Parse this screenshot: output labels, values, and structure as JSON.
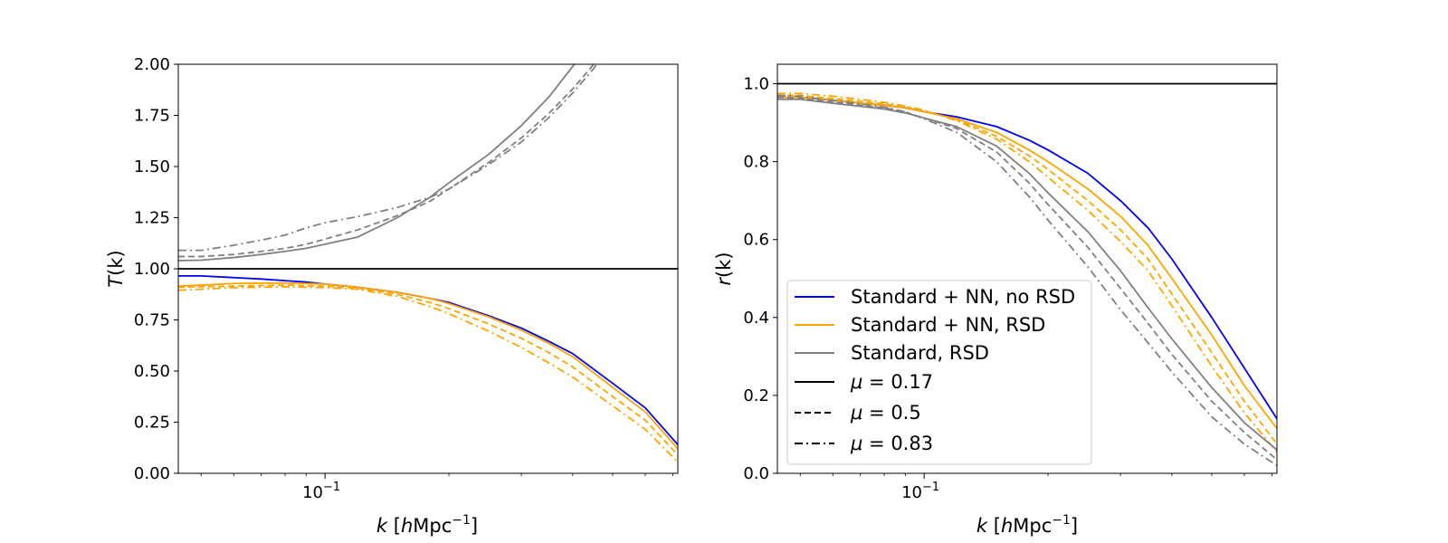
{
  "colors": {
    "nn_no_rsd": "#0000ff",
    "nn_rsd": "#ffa500",
    "standard_rsd": "#808080",
    "reference": "#000000"
  },
  "legend": {
    "placement": "lower-left",
    "panel": 1,
    "entries": [
      {
        "label": "Standard + NN, no RSD",
        "color_key": "nn_no_rsd",
        "dash": "solid"
      },
      {
        "label": "Standard + NN, RSD",
        "color_key": "nn_rsd",
        "dash": "solid"
      },
      {
        "label": "Standard, RSD",
        "color_key": "standard_rsd",
        "dash": "solid"
      },
      {
        "label_parts": {
          "symbol": "μ",
          "value": " = 0.17"
        },
        "color_key": "reference",
        "dash": "solid"
      },
      {
        "label_parts": {
          "symbol": "μ",
          "value": " = 0.5"
        },
        "color_key": "reference",
        "dash": "dashed"
      },
      {
        "label_parts": {
          "symbol": "μ",
          "value": " = 0.83"
        },
        "color_key": "reference",
        "dash": "dashdot"
      }
    ]
  },
  "chart_data": [
    {
      "type": "line",
      "xscale": "log",
      "xlim": [
        0.044,
        0.72
      ],
      "ylim": [
        0,
        2.0
      ],
      "grid": false,
      "xlabel_parts": {
        "var": "k",
        "pre": " [",
        "h": "h",
        "mid": "Mpc",
        "sup": "−1",
        "post": "]"
      },
      "ylabel_parts": {
        "var": "T",
        "rest": "(k)"
      },
      "x_major_ticks": [
        {
          "value": 0.1,
          "base": "10",
          "exp": "−1"
        }
      ],
      "y_ticks": [
        {
          "value": 0.0,
          "label": "0.00"
        },
        {
          "value": 0.25,
          "label": "0.25"
        },
        {
          "value": 0.5,
          "label": "0.50"
        },
        {
          "value": 0.75,
          "label": "0.75"
        },
        {
          "value": 1.0,
          "label": "1.00"
        },
        {
          "value": 1.25,
          "label": "1.25"
        },
        {
          "value": 1.5,
          "label": "1.50"
        },
        {
          "value": 1.75,
          "label": "1.75"
        },
        {
          "value": 2.0,
          "label": "2.00"
        }
      ],
      "hline": 1.0,
      "series": [
        {
          "color_key": "nn_no_rsd",
          "dash": "solid",
          "x": [
            0.044,
            0.05,
            0.06,
            0.07,
            0.08,
            0.09,
            0.1,
            0.12,
            0.15,
            0.18,
            0.2,
            0.25,
            0.3,
            0.35,
            0.4,
            0.5,
            0.6,
            0.72
          ],
          "y": [
            0.965,
            0.965,
            0.957,
            0.95,
            0.942,
            0.935,
            0.925,
            0.91,
            0.885,
            0.855,
            0.835,
            0.77,
            0.71,
            0.645,
            0.585,
            0.44,
            0.32,
            0.14
          ]
        },
        {
          "color_key": "nn_rsd",
          "dash": "solid",
          "x": [
            0.044,
            0.05,
            0.06,
            0.07,
            0.08,
            0.09,
            0.1,
            0.12,
            0.15,
            0.18,
            0.2,
            0.25,
            0.3,
            0.35,
            0.4,
            0.5,
            0.6,
            0.72
          ],
          "y": [
            0.915,
            0.92,
            0.928,
            0.93,
            0.93,
            0.928,
            0.925,
            0.91,
            0.885,
            0.855,
            0.83,
            0.765,
            0.7,
            0.635,
            0.57,
            0.42,
            0.3,
            0.12
          ]
        },
        {
          "color_key": "nn_rsd",
          "dash": "dashed",
          "x": [
            0.044,
            0.05,
            0.06,
            0.07,
            0.08,
            0.09,
            0.1,
            0.12,
            0.15,
            0.18,
            0.2,
            0.25,
            0.3,
            0.35,
            0.4,
            0.5,
            0.6,
            0.72
          ],
          "y": [
            0.91,
            0.912,
            0.915,
            0.918,
            0.92,
            0.918,
            0.915,
            0.905,
            0.875,
            0.835,
            0.805,
            0.73,
            0.66,
            0.59,
            0.52,
            0.375,
            0.26,
            0.09
          ]
        },
        {
          "color_key": "nn_rsd",
          "dash": "dashdot",
          "x": [
            0.044,
            0.05,
            0.06,
            0.07,
            0.08,
            0.09,
            0.1,
            0.12,
            0.15,
            0.18,
            0.2,
            0.25,
            0.3,
            0.35,
            0.4,
            0.5,
            0.6,
            0.72
          ],
          "y": [
            0.895,
            0.9,
            0.908,
            0.91,
            0.912,
            0.91,
            0.908,
            0.9,
            0.865,
            0.815,
            0.78,
            0.695,
            0.615,
            0.54,
            0.47,
            0.33,
            0.215,
            0.055
          ]
        },
        {
          "color_key": "standard_rsd",
          "dash": "solid",
          "x": [
            0.044,
            0.05,
            0.06,
            0.07,
            0.08,
            0.09,
            0.1,
            0.12,
            0.15,
            0.18,
            0.2,
            0.25,
            0.3,
            0.35,
            0.4,
            0.45,
            0.48
          ],
          "y": [
            1.04,
            1.042,
            1.055,
            1.07,
            1.085,
            1.1,
            1.12,
            1.155,
            1.25,
            1.35,
            1.42,
            1.56,
            1.7,
            1.84,
            1.99,
            2.12,
            2.2
          ]
        },
        {
          "color_key": "standard_rsd",
          "dash": "dashed",
          "x": [
            0.044,
            0.05,
            0.06,
            0.07,
            0.08,
            0.09,
            0.1,
            0.12,
            0.15,
            0.18,
            0.2,
            0.25,
            0.3,
            0.35,
            0.4,
            0.45,
            0.48
          ],
          "y": [
            1.06,
            1.06,
            1.07,
            1.085,
            1.1,
            1.12,
            1.145,
            1.19,
            1.26,
            1.33,
            1.39,
            1.52,
            1.64,
            1.76,
            1.88,
            2.0,
            2.08
          ]
        },
        {
          "color_key": "standard_rsd",
          "dash": "dashdot",
          "x": [
            0.044,
            0.05,
            0.06,
            0.07,
            0.08,
            0.09,
            0.1,
            0.12,
            0.15,
            0.18,
            0.2,
            0.25,
            0.3,
            0.35,
            0.4,
            0.45,
            0.48
          ],
          "y": [
            1.09,
            1.09,
            1.115,
            1.14,
            1.165,
            1.2,
            1.225,
            1.255,
            1.3,
            1.35,
            1.39,
            1.51,
            1.62,
            1.74,
            1.86,
            1.98,
            2.06
          ]
        }
      ]
    },
    {
      "type": "line",
      "xscale": "log",
      "xlim": [
        0.044,
        0.72
      ],
      "ylim": [
        0,
        1.05
      ],
      "grid": false,
      "xlabel_parts": {
        "var": "k",
        "pre": " [",
        "h": "h",
        "mid": "Mpc",
        "sup": "−1",
        "post": "]"
      },
      "ylabel_parts": {
        "var": "r",
        "rest": "(k)"
      },
      "x_major_ticks": [
        {
          "value": 0.1,
          "base": "10",
          "exp": "−1"
        }
      ],
      "y_ticks": [
        {
          "value": 0.0,
          "label": "0.0"
        },
        {
          "value": 0.2,
          "label": "0.2"
        },
        {
          "value": 0.4,
          "label": "0.4"
        },
        {
          "value": 0.6,
          "label": "0.6"
        },
        {
          "value": 0.8,
          "label": "0.8"
        },
        {
          "value": 1.0,
          "label": "1.0"
        }
      ],
      "hline": 1.0,
      "series": [
        {
          "color_key": "nn_no_rsd",
          "dash": "solid",
          "x": [
            0.044,
            0.05,
            0.06,
            0.07,
            0.08,
            0.09,
            0.1,
            0.12,
            0.15,
            0.18,
            0.2,
            0.25,
            0.3,
            0.35,
            0.4,
            0.5,
            0.6,
            0.72
          ],
          "y": [
            0.965,
            0.965,
            0.958,
            0.95,
            0.945,
            0.938,
            0.928,
            0.915,
            0.89,
            0.855,
            0.83,
            0.77,
            0.7,
            0.63,
            0.55,
            0.4,
            0.27,
            0.14
          ]
        },
        {
          "color_key": "nn_rsd",
          "dash": "solid",
          "x": [
            0.044,
            0.05,
            0.06,
            0.07,
            0.08,
            0.09,
            0.1,
            0.12,
            0.15,
            0.18,
            0.2,
            0.25,
            0.3,
            0.35,
            0.4,
            0.5,
            0.6,
            0.72
          ],
          "y": [
            0.965,
            0.965,
            0.958,
            0.95,
            0.945,
            0.938,
            0.928,
            0.91,
            0.875,
            0.83,
            0.8,
            0.73,
            0.66,
            0.585,
            0.5,
            0.355,
            0.225,
            0.115
          ]
        },
        {
          "color_key": "nn_rsd",
          "dash": "dashed",
          "x": [
            0.044,
            0.05,
            0.06,
            0.07,
            0.08,
            0.09,
            0.1,
            0.12,
            0.15,
            0.18,
            0.2,
            0.25,
            0.3,
            0.35,
            0.4,
            0.5,
            0.6,
            0.72
          ],
          "y": [
            0.97,
            0.97,
            0.962,
            0.955,
            0.948,
            0.94,
            0.93,
            0.908,
            0.865,
            0.815,
            0.78,
            0.7,
            0.625,
            0.55,
            0.46,
            0.31,
            0.185,
            0.075
          ]
        },
        {
          "color_key": "nn_rsd",
          "dash": "dashdot",
          "x": [
            0.044,
            0.05,
            0.06,
            0.07,
            0.08,
            0.09,
            0.1,
            0.12,
            0.15,
            0.18,
            0.2,
            0.25,
            0.3,
            0.35,
            0.4,
            0.5,
            0.6,
            0.72
          ],
          "y": [
            0.975,
            0.975,
            0.968,
            0.96,
            0.952,
            0.943,
            0.932,
            0.905,
            0.858,
            0.8,
            0.76,
            0.675,
            0.595,
            0.52,
            0.43,
            0.275,
            0.155,
            0.055
          ]
        },
        {
          "color_key": "standard_rsd",
          "dash": "solid",
          "x": [
            0.044,
            0.05,
            0.06,
            0.07,
            0.08,
            0.09,
            0.1,
            0.12,
            0.15,
            0.18,
            0.2,
            0.25,
            0.3,
            0.35,
            0.4,
            0.5,
            0.6,
            0.72
          ],
          "y": [
            0.96,
            0.96,
            0.95,
            0.942,
            0.935,
            0.925,
            0.912,
            0.89,
            0.84,
            0.77,
            0.72,
            0.62,
            0.52,
            0.425,
            0.345,
            0.22,
            0.13,
            0.06
          ]
        },
        {
          "color_key": "standard_rsd",
          "dash": "dashed",
          "x": [
            0.044,
            0.05,
            0.06,
            0.07,
            0.08,
            0.09,
            0.1,
            0.12,
            0.15,
            0.18,
            0.2,
            0.25,
            0.3,
            0.35,
            0.4,
            0.5,
            0.6,
            0.72
          ],
          "y": [
            0.965,
            0.963,
            0.953,
            0.945,
            0.938,
            0.927,
            0.912,
            0.885,
            0.825,
            0.745,
            0.69,
            0.58,
            0.475,
            0.385,
            0.305,
            0.185,
            0.105,
            0.035
          ]
        },
        {
          "color_key": "standard_rsd",
          "dash": "dashdot",
          "x": [
            0.044,
            0.05,
            0.06,
            0.07,
            0.08,
            0.09,
            0.1,
            0.12,
            0.15,
            0.18,
            0.2,
            0.25,
            0.3,
            0.35,
            0.4,
            0.5,
            0.6,
            0.72
          ],
          "y": [
            0.97,
            0.968,
            0.957,
            0.948,
            0.94,
            0.928,
            0.91,
            0.875,
            0.8,
            0.71,
            0.65,
            0.53,
            0.42,
            0.335,
            0.26,
            0.145,
            0.075,
            0.02
          ]
        }
      ]
    }
  ]
}
